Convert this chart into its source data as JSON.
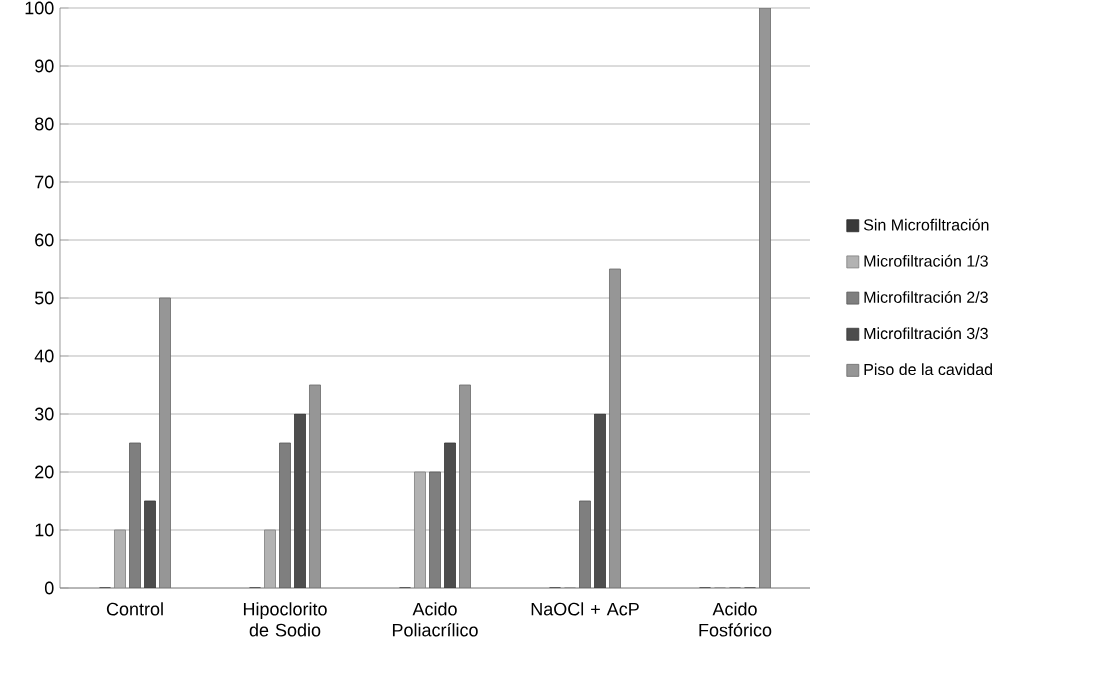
{
  "chart_data": {
    "type": "bar",
    "categories": [
      "Control",
      "Hipoclorito de Sodio",
      "Acido Poliacrílico",
      "NaOCl + AcP",
      "Acido Fosfórico"
    ],
    "series": [
      {
        "name": "Sin Microfiltración",
        "color": "#3a3a3a",
        "values": [
          0,
          0,
          0,
          0,
          0
        ]
      },
      {
        "name": "Microfiltración 1/3",
        "color": "#b2b2b2",
        "values": [
          10,
          10,
          20,
          0,
          0
        ]
      },
      {
        "name": "Microfiltración 2/3",
        "color": "#7f7f7f",
        "values": [
          25,
          25,
          20,
          15,
          0
        ]
      },
      {
        "name": "Microfiltración 3/3",
        "color": "#4d4d4d",
        "values": [
          15,
          30,
          25,
          30,
          0
        ]
      },
      {
        "name": "Piso de la cavidad",
        "color": "#969696",
        "values": [
          50,
          35,
          35,
          55,
          100
        ]
      }
    ],
    "ylim": [
      0,
      100
    ],
    "yticks": [
      0,
      10,
      20,
      30,
      40,
      50,
      60,
      70,
      80,
      90,
      100
    ],
    "grid": "y",
    "legend": "right"
  }
}
